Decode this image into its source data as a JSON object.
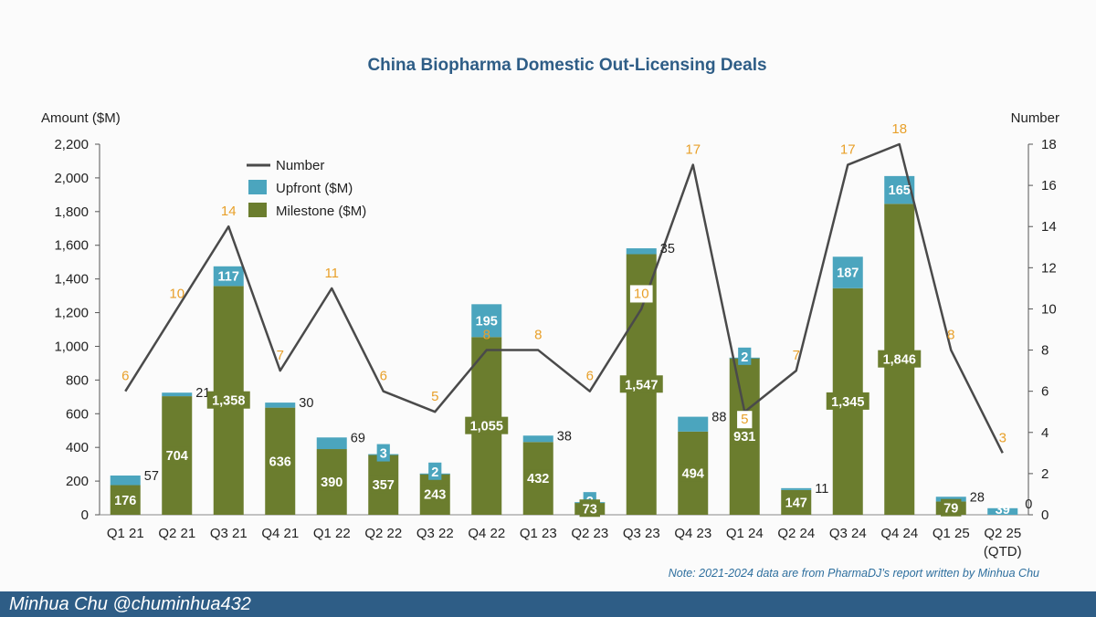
{
  "colors": {
    "milestone": "#6b7d2e",
    "upfront": "#4ba5be",
    "line": "#4a4a4a",
    "number_label": "#e8a02a",
    "title": "#2e5d86",
    "note": "#2e6f9e",
    "footer_bg": "#2e5d86"
  },
  "chart_data": {
    "type": "bar",
    "title": "China Biopharma Domestic Out-Licensing Deals",
    "ylabel": "Amount ($M)",
    "y2label": "Number",
    "ylim": [
      0,
      2200
    ],
    "y2lim": [
      0,
      18
    ],
    "yticks": [
      0,
      200,
      400,
      600,
      800,
      1000,
      1200,
      1400,
      1600,
      1800,
      2000,
      2200
    ],
    "y2ticks": [
      0,
      2,
      4,
      6,
      8,
      10,
      12,
      14,
      16,
      18
    ],
    "categories": [
      "Q1 21",
      "Q2 21",
      "Q3 21",
      "Q4 21",
      "Q1 22",
      "Q2 22",
      "Q3 22",
      "Q4 22",
      "Q1 23",
      "Q2 23",
      "Q3 23",
      "Q4 23",
      "Q1 24",
      "Q2 24",
      "Q3 24",
      "Q4 24",
      "Q1 25",
      "Q2 25"
    ],
    "category_sublabels": [
      "",
      "",
      "",
      "",
      "",
      "",
      "",
      "",
      "",
      "",
      "",
      "",
      "",
      "",
      "",
      "",
      "",
      "(QTD)"
    ],
    "legend_position": "top-left",
    "series": [
      {
        "name": "Milestone ($M)",
        "kind": "bar",
        "values": [
          176,
          704,
          1358,
          636,
          390,
          357,
          243,
          1055,
          432,
          73,
          1547,
          494,
          931,
          147,
          1345,
          1846,
          79,
          0
        ],
        "labels": [
          "176",
          "704",
          "1,358",
          "636",
          "390",
          "357",
          "243",
          "1,055",
          "432",
          "73",
          "1,547",
          "494",
          "931",
          "147",
          "1,345",
          "1,846",
          "79",
          "0"
        ]
      },
      {
        "name": "Upfront ($M)",
        "kind": "bar",
        "values": [
          57,
          21,
          117,
          30,
          69,
          3,
          2,
          195,
          38,
          2,
          35,
          88,
          2,
          11,
          187,
          165,
          28,
          39
        ],
        "labels": [
          "57",
          "21",
          "117",
          "30",
          "69",
          "3",
          "2",
          "195",
          "38",
          "2",
          "35",
          "88",
          "2",
          "11",
          "187",
          "165",
          "28",
          "39"
        ]
      },
      {
        "name": "Number",
        "kind": "line",
        "axis": "right",
        "values": [
          6,
          10,
          14,
          7,
          11,
          6,
          5,
          8,
          8,
          6,
          10,
          17,
          5,
          7,
          17,
          18,
          8,
          3
        ]
      }
    ],
    "legend": [
      "Number",
      "Upfront ($M)",
      "Milestone ($M)"
    ],
    "note": "Note: 2021-2024 data are from PharmaDJ’s report written by Minhua Chu"
  },
  "footer": {
    "author": "Minhua Chu @chuminhua432"
  }
}
